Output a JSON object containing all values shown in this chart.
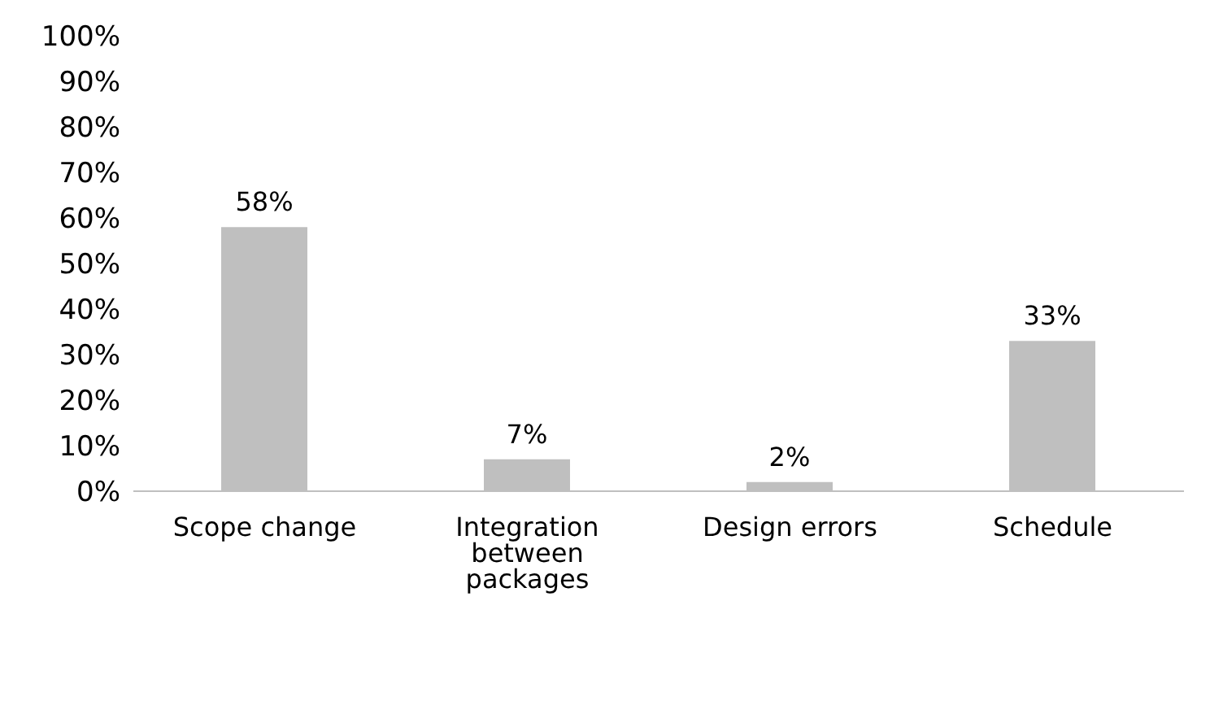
{
  "chart_data": {
    "type": "bar",
    "categories": [
      "Scope change",
      "Integration between packages",
      "Design errors",
      "Schedule"
    ],
    "values": [
      58,
      7,
      2,
      33
    ],
    "value_labels": [
      "58%",
      "7%",
      "2%",
      "33%"
    ],
    "color": "#bfbfbf",
    "ylim": [
      0,
      100
    ],
    "yticks": [
      {
        "value": 0,
        "label": "0%"
      },
      {
        "value": 10,
        "label": "10%"
      },
      {
        "value": 20,
        "label": "20%"
      },
      {
        "value": 30,
        "label": "30%"
      },
      {
        "value": 40,
        "label": "40%"
      },
      {
        "value": 50,
        "label": "50%"
      },
      {
        "value": 60,
        "label": "60%"
      },
      {
        "value": 70,
        "label": "70%"
      },
      {
        "value": 80,
        "label": "80%"
      },
      {
        "value": 90,
        "label": "90%"
      },
      {
        "value": 100,
        "label": "100%"
      }
    ],
    "grid": false,
    "legend": false
  }
}
